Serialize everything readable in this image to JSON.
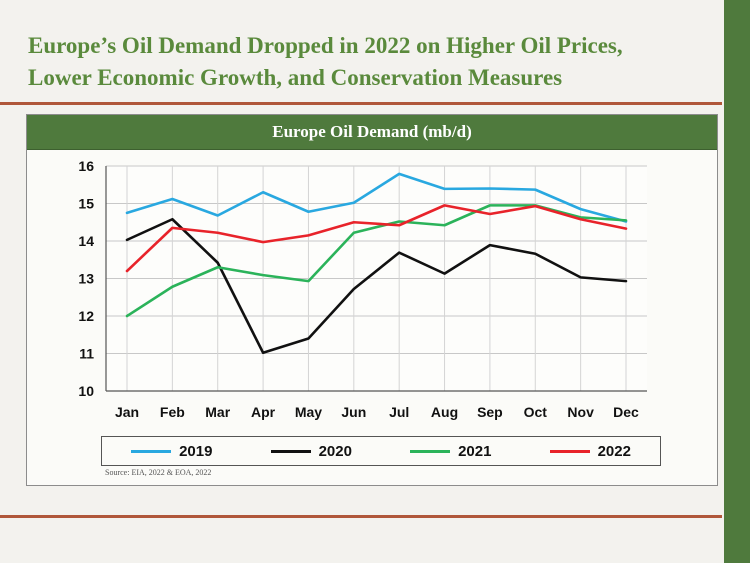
{
  "slide": {
    "title_lines": [
      "Europe’s Oil Demand Dropped in 2022 on Higher Oil Prices,",
      "Lower Economic Growth, and Conservation Measures"
    ],
    "source": "Source: EIA, 2022 & EOA, 2022"
  },
  "colors": {
    "accent_green": "#4f7a3d",
    "title_green": "#5a8a3c",
    "rule": "#b0573a"
  },
  "chart_data": {
    "type": "line",
    "title": "Europe Oil Demand (mb/d)",
    "categories": [
      "Jan",
      "Feb",
      "Mar",
      "Apr",
      "May",
      "Jun",
      "Jul",
      "Aug",
      "Sep",
      "Oct",
      "Nov",
      "Dec"
    ],
    "ylim": [
      10,
      16
    ],
    "yticks": [
      10,
      11,
      12,
      13,
      14,
      15,
      16
    ],
    "grid": true,
    "legend_position": "bottom",
    "series": [
      {
        "name": "2019",
        "color": "#29a8e0",
        "values": [
          14.75,
          15.12,
          14.68,
          15.3,
          14.78,
          15.02,
          15.79,
          15.39,
          15.4,
          15.37,
          14.85,
          14.52
        ]
      },
      {
        "name": "2020",
        "color": "#111111",
        "values": [
          14.03,
          14.58,
          13.42,
          11.02,
          11.4,
          12.72,
          13.69,
          13.13,
          13.89,
          13.66,
          13.03,
          12.93
        ]
      },
      {
        "name": "2021",
        "color": "#2bb35a",
        "values": [
          12.0,
          12.78,
          13.3,
          13.09,
          12.93,
          14.22,
          14.52,
          14.42,
          14.95,
          14.95,
          14.63,
          14.55
        ]
      },
      {
        "name": "2022",
        "color": "#e8232a",
        "values": [
          13.2,
          14.35,
          14.22,
          13.97,
          14.15,
          14.5,
          14.42,
          14.95,
          14.72,
          14.93,
          14.58,
          14.33
        ]
      }
    ]
  }
}
